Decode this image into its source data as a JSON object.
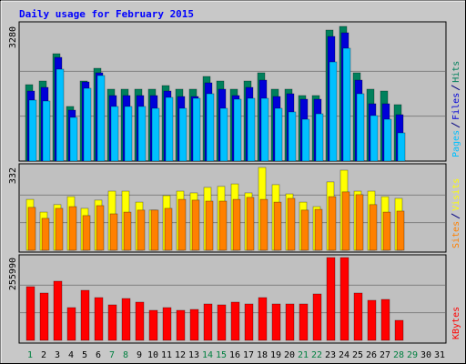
{
  "chart_data": [
    {
      "type": "bar",
      "title": "Daily usage for February 2015",
      "ylim": [
        0,
        3280
      ],
      "yticks": [
        3280
      ],
      "series": [
        {
          "name": "Hits",
          "color": "#00805c",
          "values": [
            1861,
            1950,
            2615,
            1330,
            1950,
            2260,
            1751,
            1751,
            1751,
            1751,
            1839,
            1751,
            1751,
            2061,
            1950,
            1751,
            1950,
            2150,
            1751,
            1751,
            1596,
            1596,
            3191,
            3280,
            2150,
            1751,
            1706,
            1374,
            null,
            null,
            null
          ]
        },
        {
          "name": "Files",
          "color": "#0000d8",
          "values": [
            1706,
            1795,
            2526,
            1241,
            1928,
            2150,
            1596,
            1596,
            1596,
            1596,
            1706,
            1573,
            1573,
            1906,
            1751,
            1596,
            1795,
            1972,
            1573,
            1640,
            1507,
            1507,
            3036,
            3125,
            1972,
            1396,
            1396,
            1130,
            null,
            null,
            null
          ]
        },
        {
          "name": "Pages",
          "color": "#00c0ff",
          "values": [
            1485,
            1463,
            2238,
            1064,
            1773,
            2083,
            1330,
            1330,
            1330,
            1285,
            1551,
            1285,
            1529,
            1640,
            1285,
            1507,
            1529,
            1529,
            1285,
            1197,
            1019,
            1152,
            2415,
            2748,
            1640,
            1108,
            1019,
            687,
            null,
            null,
            null
          ]
        }
      ]
    },
    {
      "type": "bar",
      "ylim": [
        0,
        332
      ],
      "yticks": [
        332
      ],
      "series": [
        {
          "name": "Visits",
          "color": "#ffff00",
          "values": [
            204,
            153,
            183,
            215,
            168,
            201,
            237,
            237,
            193,
            161,
            219,
            237,
            230,
            252,
            256,
            266,
            230,
            332,
            263,
            226,
            193,
            175,
            274,
            321,
            237,
            237,
            215,
            208,
            null,
            null,
            null
          ]
        },
        {
          "name": "Sites",
          "color": "#ff8000",
          "values": [
            172,
            128,
            168,
            175,
            139,
            179,
            146,
            153,
            161,
            161,
            168,
            204,
            201,
            197,
            197,
            204,
            212,
            204,
            193,
            208,
            161,
            164,
            215,
            234,
            223,
            183,
            153,
            157,
            null,
            null,
            null
          ]
        }
      ]
    },
    {
      "type": "bar",
      "ylim": [
        0,
        255990
      ],
      "yticks": [
        255990
      ],
      "categories": [
        "1",
        "2",
        "3",
        "4",
        "5",
        "6",
        "7",
        "8",
        "9",
        "10",
        "11",
        "12",
        "13",
        "14",
        "15",
        "16",
        "17",
        "18",
        "19",
        "20",
        "21",
        "22",
        "23",
        "24",
        "25",
        "26",
        "27",
        "28",
        "29",
        "30",
        "31"
      ],
      "category_colors": [
        "#008040",
        "#000000",
        "#000000",
        "#000000",
        "#000000",
        "#000000",
        "#008040",
        "#008040",
        "#000000",
        "#000000",
        "#000000",
        "#000000",
        "#000000",
        "#008040",
        "#008040",
        "#000000",
        "#000000",
        "#000000",
        "#000000",
        "#000000",
        "#008040",
        "#008040",
        "#000000",
        "#000000",
        "#000000",
        "#000000",
        "#000000",
        "#008040",
        "#008040",
        "#000000",
        "#000000"
      ],
      "series": [
        {
          "name": "KBytes",
          "color": "#ff0000",
          "values": [
            165967,
            146276,
            182845,
            101268,
            154715,
            132211,
            109707,
            129398,
            118146,
            92829,
            101268,
            92829,
            95642,
            112520,
            109707,
            118146,
            112520,
            132211,
            112520,
            112520,
            112520,
            143463,
            255990,
            255990,
            146276,
            123772,
            126585,
            61886,
            null,
            null,
            null
          ]
        }
      ]
    }
  ]
}
